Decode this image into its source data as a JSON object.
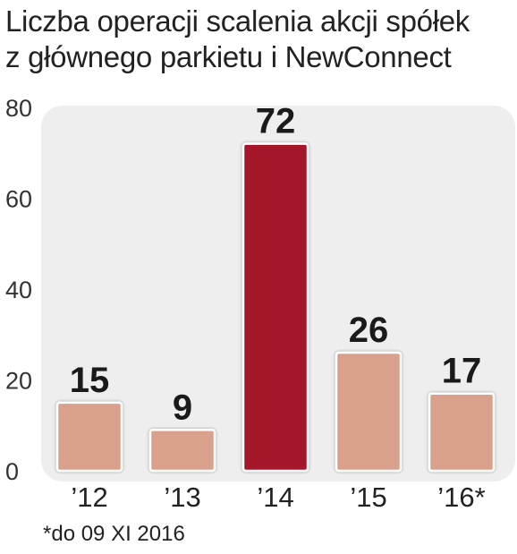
{
  "chart_data": {
    "type": "bar",
    "title_lines": [
      "Liczba operacji scalenia akcji spółek",
      "z głównego parkietu i NewConnect"
    ],
    "categories": [
      "’12",
      "’13",
      "’14",
      "’15",
      "’16*"
    ],
    "values": [
      15,
      9,
      72,
      26,
      17
    ],
    "data_labels": [
      "15",
      "9",
      "72",
      "26",
      "17"
    ],
    "highlight_index": 2,
    "y_ticks": [
      "0",
      "20",
      "40",
      "60",
      "80"
    ],
    "ylim": [
      0,
      80
    ],
    "grid": false,
    "colors": {
      "bar": "#d9a08c",
      "highlight": "#a4142b",
      "panel": "#eeeeee",
      "text": "#1a1a1a"
    }
  },
  "footnote": "*do 09 XI 2016"
}
